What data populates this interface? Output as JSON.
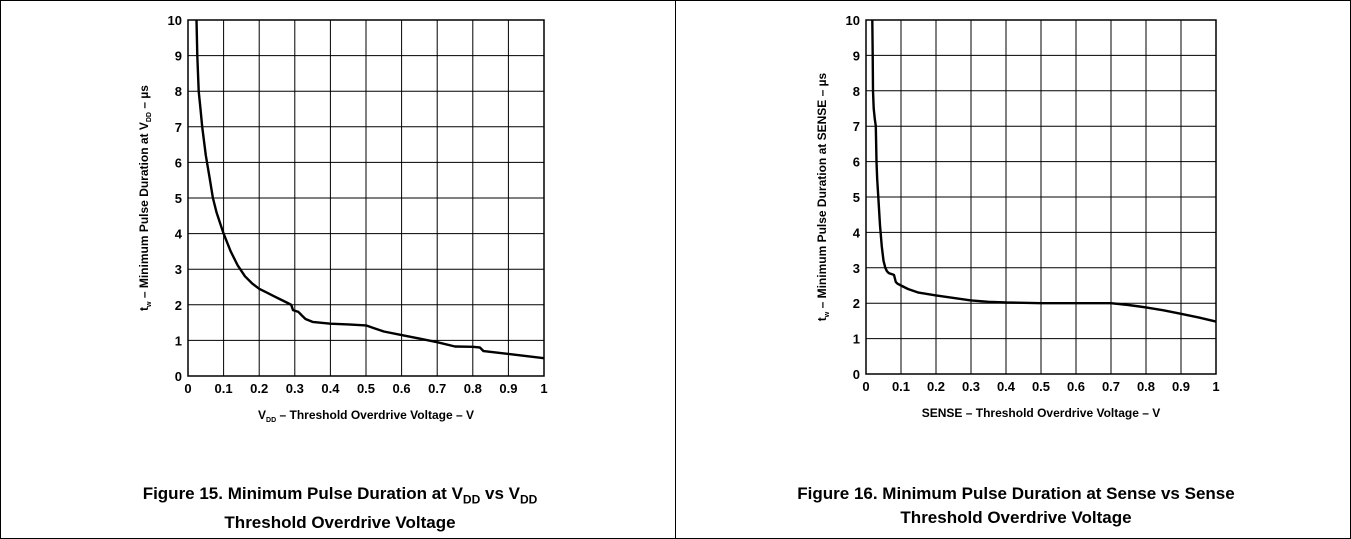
{
  "figures": [
    {
      "caption_line1_pre": "Figure 15.  Minimum Pulse Duration at V",
      "caption_sub1": "DD",
      "caption_mid": " vs V",
      "caption_sub2": "DD",
      "caption_line2": "Threshold Overdrive Voltage"
    },
    {
      "caption_line1": "Figure 16.  Minimum Pulse Duration at Sense vs Sense",
      "caption_line2": "Threshold Overdrive Voltage"
    }
  ],
  "chart_data": [
    {
      "type": "line",
      "xlabel": "V_DD – Threshold Overdrive Voltage – V",
      "ylabel": "t_w – Minimum Pulse Duration at V_DD – µs",
      "xlim": [
        0,
        1
      ],
      "ylim": [
        0,
        10
      ],
      "xticks": [
        "0",
        "0.1",
        "0.2",
        "0.3",
        "0.4",
        "0.5",
        "0.6",
        "0.7",
        "0.8",
        "0.9",
        "1"
      ],
      "yticks": [
        "0",
        "1",
        "2",
        "3",
        "4",
        "5",
        "6",
        "7",
        "8",
        "9",
        "10"
      ],
      "grid": true,
      "series": [
        {
          "x": [
            0.024,
            0.025,
            0.026,
            0.028,
            0.03,
            0.035,
            0.04,
            0.05,
            0.06,
            0.07,
            0.08,
            0.09,
            0.1,
            0.12,
            0.14,
            0.16,
            0.18,
            0.2,
            0.22,
            0.24,
            0.26,
            0.28,
            0.29,
            0.295,
            0.31,
            0.32,
            0.33,
            0.35,
            0.4,
            0.45,
            0.5,
            0.52,
            0.55,
            0.6,
            0.65,
            0.7,
            0.75,
            0.8,
            0.82,
            0.83,
            0.9,
            1.0
          ],
          "y": [
            10,
            9.5,
            9.0,
            8.5,
            8.0,
            7.5,
            7.0,
            6.2,
            5.6,
            5.0,
            4.6,
            4.3,
            4.0,
            3.5,
            3.1,
            2.8,
            2.6,
            2.45,
            2.35,
            2.25,
            2.15,
            2.05,
            2.0,
            1.85,
            1.8,
            1.7,
            1.6,
            1.52,
            1.47,
            1.45,
            1.42,
            1.35,
            1.25,
            1.15,
            1.05,
            0.95,
            0.83,
            0.82,
            0.8,
            0.7,
            0.62,
            0.5
          ]
        }
      ]
    },
    {
      "type": "line",
      "xlabel": "SENSE – Threshold Overdrive Voltage – V",
      "ylabel": "t_w – Minimum Pulse Duration at SENSE – µs",
      "xlim": [
        0,
        1
      ],
      "ylim": [
        0,
        10
      ],
      "xticks": [
        "0",
        "0.1",
        "0.2",
        "0.3",
        "0.4",
        "0.5",
        "0.6",
        "0.7",
        "0.8",
        "0.9",
        "1"
      ],
      "yticks": [
        "0",
        "1",
        "2",
        "3",
        "4",
        "5",
        "6",
        "7",
        "8",
        "9",
        "10"
      ],
      "grid": true,
      "series": [
        {
          "x": [
            0.018,
            0.019,
            0.02,
            0.022,
            0.025,
            0.028,
            0.03,
            0.032,
            0.035,
            0.04,
            0.045,
            0.05,
            0.055,
            0.06,
            0.065,
            0.08,
            0.085,
            0.09,
            0.1,
            0.12,
            0.15,
            0.2,
            0.25,
            0.3,
            0.35,
            0.4,
            0.45,
            0.5,
            0.55,
            0.6,
            0.65,
            0.7,
            0.75,
            0.8,
            0.85,
            0.9,
            0.95,
            1.0
          ],
          "y": [
            10,
            9.0,
            8.0,
            7.5,
            7.2,
            7.0,
            6.0,
            5.5,
            5.0,
            4.2,
            3.6,
            3.2,
            3.0,
            2.9,
            2.85,
            2.8,
            2.6,
            2.55,
            2.5,
            2.4,
            2.3,
            2.22,
            2.15,
            2.08,
            2.04,
            2.02,
            2.01,
            2.0,
            2.0,
            2.0,
            2.0,
            2.0,
            1.95,
            1.88,
            1.8,
            1.7,
            1.6,
            1.48
          ]
        }
      ]
    }
  ]
}
